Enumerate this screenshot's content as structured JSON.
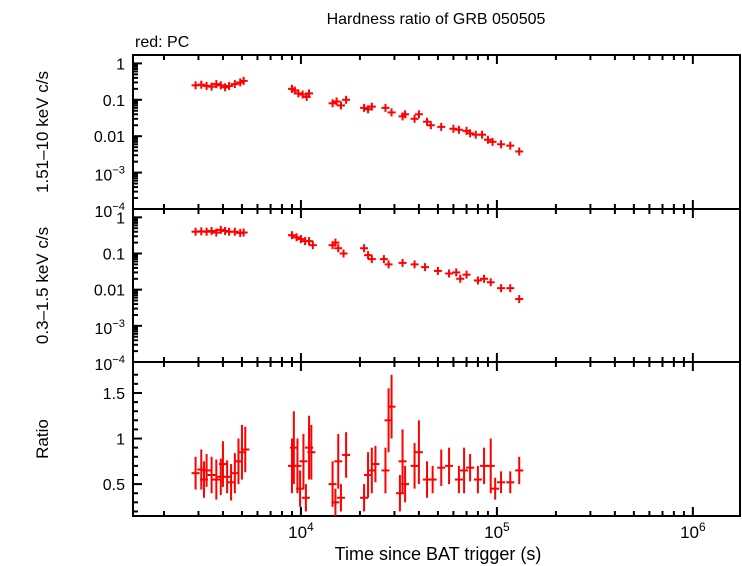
{
  "chart_data": [
    {
      "type": "scatter",
      "title": "Hardness ratio of GRB 050505",
      "subtitle": "red: PC",
      "xlabel": "Time since BAT trigger (s)",
      "xscale": "log",
      "xlim": [
        1390,
        1740000
      ],
      "xticks": [
        {
          "v": 10000,
          "base": "10",
          "exp": "4"
        },
        {
          "v": 100000,
          "base": "10",
          "exp": "5"
        },
        {
          "v": 1000000,
          "base": "10",
          "exp": "6"
        }
      ],
      "color": "#ff0000",
      "panels": [
        {
          "ylabel": "1.51–10 keV c/s",
          "yscale": "log",
          "ylim": [
            0.0001,
            1.7
          ],
          "yticks": [
            {
              "v": 1,
              "t": "1"
            },
            {
              "v": 0.1,
              "t": "0.1"
            },
            {
              "v": 0.01,
              "t": "0.01"
            },
            {
              "v": 0.001,
              "base": "10",
              "exp": "−3"
            },
            {
              "v": 0.0001,
              "base": "10",
              "exp": "−4"
            }
          ],
          "points": [
            [
              2900,
              0.25
            ],
            [
              3100,
              0.26
            ],
            [
              3300,
              0.24
            ],
            [
              3500,
              0.23
            ],
            [
              3700,
              0.27
            ],
            [
              3900,
              0.25
            ],
            [
              4100,
              0.22
            ],
            [
              4300,
              0.24
            ],
            [
              4600,
              0.27
            ],
            [
              4900,
              0.3
            ],
            [
              5100,
              0.33
            ],
            [
              9000,
              0.2
            ],
            [
              9300,
              0.18
            ],
            [
              9700,
              0.15
            ],
            [
              10200,
              0.14
            ],
            [
              10700,
              0.12
            ],
            [
              11000,
              0.15
            ],
            [
              14500,
              0.08
            ],
            [
              15200,
              0.09
            ],
            [
              16000,
              0.07
            ],
            [
              17000,
              0.1
            ],
            [
              21000,
              0.06
            ],
            [
              22000,
              0.055
            ],
            [
              23000,
              0.065
            ],
            [
              27000,
              0.06
            ],
            [
              29000,
              0.045
            ],
            [
              33000,
              0.035
            ],
            [
              34000,
              0.04
            ],
            [
              38000,
              0.03
            ],
            [
              40000,
              0.04
            ],
            [
              44000,
              0.025
            ],
            [
              46000,
              0.02
            ],
            [
              52000,
              0.018
            ],
            [
              60000,
              0.016
            ],
            [
              64000,
              0.015
            ],
            [
              70000,
              0.014
            ],
            [
              73000,
              0.012
            ],
            [
              78000,
              0.011
            ],
            [
              84000,
              0.011
            ],
            [
              90000,
              0.008
            ],
            [
              95000,
              0.007
            ],
            [
              105000,
              0.006
            ],
            [
              117000,
              0.0055
            ],
            [
              130000,
              0.0038
            ]
          ]
        },
        {
          "ylabel": "0.3–1.5 keV c/s",
          "yscale": "log",
          "ylim": [
            0.0001,
            1.7
          ],
          "yticks": [
            {
              "v": 1,
              "t": "1"
            },
            {
              "v": 0.1,
              "t": "0.1"
            },
            {
              "v": 0.01,
              "t": "0.01"
            },
            {
              "v": 0.001,
              "base": "10",
              "exp": "−3"
            },
            {
              "v": 0.0001,
              "base": "10",
              "exp": "−4"
            }
          ],
          "points": [
            [
              2900,
              0.4
            ],
            [
              3100,
              0.41
            ],
            [
              3300,
              0.4
            ],
            [
              3500,
              0.42
            ],
            [
              3700,
              0.38
            ],
            [
              3900,
              0.45
            ],
            [
              4100,
              0.42
            ],
            [
              4300,
              0.4
            ],
            [
              4600,
              0.4
            ],
            [
              4900,
              0.37
            ],
            [
              5100,
              0.38
            ],
            [
              9000,
              0.32
            ],
            [
              9500,
              0.28
            ],
            [
              10000,
              0.25
            ],
            [
              10500,
              0.22
            ],
            [
              11000,
              0.22
            ],
            [
              11500,
              0.17
            ],
            [
              14500,
              0.17
            ],
            [
              15000,
              0.2
            ],
            [
              15500,
              0.14
            ],
            [
              16500,
              0.1
            ],
            [
              21000,
              0.14
            ],
            [
              22000,
              0.09
            ],
            [
              23000,
              0.07
            ],
            [
              26500,
              0.07
            ],
            [
              28000,
              0.05
            ],
            [
              33000,
              0.055
            ],
            [
              38000,
              0.05
            ],
            [
              43000,
              0.042
            ],
            [
              50000,
              0.033
            ],
            [
              57000,
              0.028
            ],
            [
              62000,
              0.03
            ],
            [
              65000,
              0.02
            ],
            [
              70000,
              0.026
            ],
            [
              80000,
              0.018
            ],
            [
              86000,
              0.02
            ],
            [
              93000,
              0.016
            ],
            [
              105000,
              0.011
            ],
            [
              117000,
              0.011
            ],
            [
              130000,
              0.0055
            ]
          ]
        },
        {
          "ylabel": "Ratio",
          "yscale": "linear",
          "ylim": [
            0.15,
            1.84
          ],
          "yticks": [
            {
              "v": 0.5,
              "t": "0.5"
            },
            {
              "v": 1,
              "t": "1"
            },
            {
              "v": 1.5,
              "t": "1.5"
            }
          ],
          "points": [
            [
              2900,
              0.62,
              0.18
            ],
            [
              3100,
              0.66,
              0.22
            ],
            [
              3200,
              0.55,
              0.2
            ],
            [
              3300,
              0.65,
              0.18
            ],
            [
              3500,
              0.6,
              0.2
            ],
            [
              3700,
              0.55,
              0.22
            ],
            [
              3900,
              0.58,
              0.2
            ],
            [
              4000,
              0.72,
              0.25
            ],
            [
              4200,
              0.58,
              0.18
            ],
            [
              4400,
              0.52,
              0.2
            ],
            [
              4600,
              0.62,
              0.22
            ],
            [
              4800,
              0.75,
              0.25
            ],
            [
              5000,
              0.85,
              0.3
            ],
            [
              5200,
              0.88,
              0.25
            ],
            [
              9000,
              0.7,
              0.3
            ],
            [
              9200,
              0.9,
              0.4
            ],
            [
              9600,
              0.7,
              0.3
            ],
            [
              9900,
              0.45,
              0.2
            ],
            [
              10300,
              0.75,
              0.3
            ],
            [
              10600,
              0.35,
              0.15
            ],
            [
              11000,
              0.9,
              0.35
            ],
            [
              11300,
              0.85,
              0.3
            ],
            [
              14500,
              0.5,
              0.25
            ],
            [
              15000,
              0.3,
              0.15
            ],
            [
              15500,
              0.75,
              0.3
            ],
            [
              16000,
              0.35,
              0.15
            ],
            [
              17000,
              0.82,
              0.25
            ],
            [
              21000,
              0.35,
              0.15
            ],
            [
              22000,
              0.6,
              0.25
            ],
            [
              23000,
              0.65,
              0.25
            ],
            [
              24000,
              0.72,
              0.2
            ],
            [
              27000,
              0.65,
              0.25
            ],
            [
              28000,
              1.2,
              0.35
            ],
            [
              29000,
              1.35,
              0.35
            ],
            [
              32000,
              0.4,
              0.2
            ],
            [
              33000,
              0.75,
              0.35
            ],
            [
              34000,
              0.5,
              0.2
            ],
            [
              38000,
              0.7,
              0.25
            ],
            [
              40000,
              0.85,
              0.35
            ],
            [
              44000,
              0.55,
              0.2
            ],
            [
              47000,
              0.55,
              0.15
            ],
            [
              52000,
              0.68,
              0.2
            ],
            [
              57000,
              0.7,
              0.2
            ],
            [
              64000,
              0.55,
              0.15
            ],
            [
              68000,
              0.65,
              0.25
            ],
            [
              73000,
              0.68,
              0.15
            ],
            [
              80000,
              0.55,
              0.15
            ],
            [
              86000,
              0.7,
              0.2
            ],
            [
              93000,
              0.7,
              0.3
            ],
            [
              98000,
              0.45,
              0.12
            ],
            [
              105000,
              0.52,
              0.12
            ],
            [
              117000,
              0.52,
              0.12
            ],
            [
              130000,
              0.65,
              0.15
            ]
          ]
        }
      ]
    }
  ]
}
